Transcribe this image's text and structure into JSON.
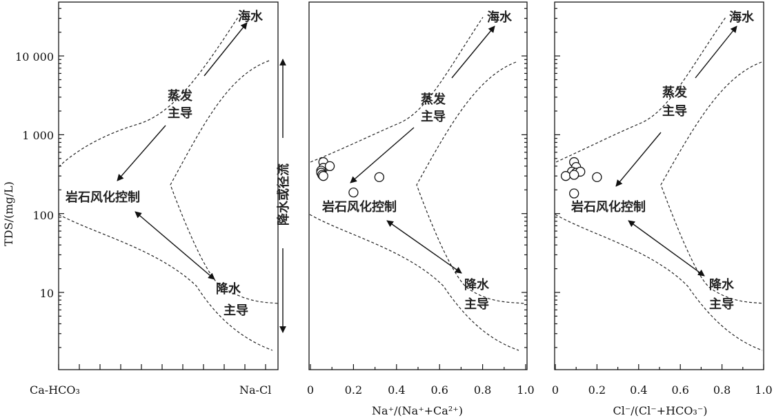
{
  "chart_data": [
    {
      "type": "scatter",
      "panel": "ion-type",
      "yscale": "log",
      "ylabel": "TDS/(mg/L)",
      "yticks": [
        "10",
        "100",
        "1 000",
        "10 000"
      ],
      "xlabel_left": "Ca-HCO₃",
      "xlabel_right": "Na-Cl",
      "regions": {
        "sea": "海水",
        "evaporation": "蒸发主导",
        "evaporation_line1": "蒸发",
        "evaporation_line2": "主导",
        "rock": "岩石风化控制",
        "precip": "降水主导",
        "precip_line1": "降水",
        "precip_line2": "主导"
      },
      "points": []
    },
    {
      "type": "scatter",
      "panel": "Na-ratio",
      "yscale": "log",
      "xlabel": "Na⁺/(Na⁺+Ca²⁺)",
      "xlim": [
        0,
        1.0
      ],
      "xticks": [
        "0",
        "0.2",
        "0.4",
        "0.6",
        "0.8",
        "1.0"
      ],
      "side_label": "降水或径流",
      "regions": {
        "sea": "海水",
        "evaporation_line1": "蒸发",
        "evaporation_line2": "主导",
        "rock": "岩石风化控制",
        "precip_line1": "降水",
        "precip_line2": "主导"
      },
      "points": [
        {
          "x": 0.06,
          "y": 450
        },
        {
          "x": 0.06,
          "y": 380
        },
        {
          "x": 0.05,
          "y": 350
        },
        {
          "x": 0.05,
          "y": 330
        },
        {
          "x": 0.055,
          "y": 310
        },
        {
          "x": 0.06,
          "y": 300
        },
        {
          "x": 0.09,
          "y": 400
        },
        {
          "x": 0.2,
          "y": 185
        },
        {
          "x": 0.32,
          "y": 290
        }
      ]
    },
    {
      "type": "scatter",
      "panel": "Cl-ratio",
      "yscale": "log",
      "xlabel": "Cl⁻/(Cl⁻+HCO₃⁻)",
      "xlim": [
        0,
        1.0
      ],
      "xticks": [
        "0",
        "0.2",
        "0.4",
        "0.6",
        "0.8",
        "1.0"
      ],
      "regions": {
        "sea": "海水",
        "evaporation_line1": "蒸发",
        "evaporation_line2": "主导",
        "rock": "岩石风化控制",
        "precip_line1": "降水",
        "precip_line2": "主导"
      },
      "points": [
        {
          "x": 0.09,
          "y": 450
        },
        {
          "x": 0.1,
          "y": 390
        },
        {
          "x": 0.08,
          "y": 340
        },
        {
          "x": 0.1,
          "y": 330
        },
        {
          "x": 0.12,
          "y": 340
        },
        {
          "x": 0.05,
          "y": 300
        },
        {
          "x": 0.09,
          "y": 310
        },
        {
          "x": 0.2,
          "y": 290
        },
        {
          "x": 0.09,
          "y": 180
        }
      ]
    }
  ]
}
